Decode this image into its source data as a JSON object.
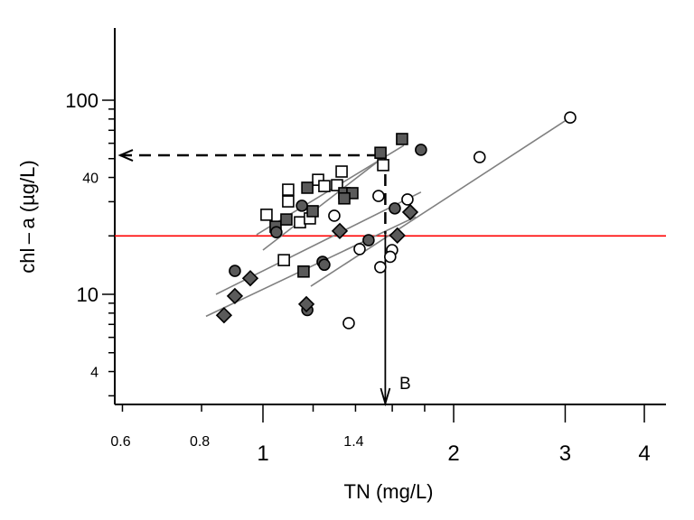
{
  "chart_data": {
    "type": "scatter",
    "title": "",
    "xlabel": "TN (mg/L)",
    "ylabel": "chl – a (µg/L)",
    "xscale": "log",
    "yscale": "log",
    "xlim": [
      0.58,
      4.3
    ],
    "ylim": [
      2.7,
      235
    ],
    "x_ticks_major": [
      {
        "value": 1,
        "label": "1"
      },
      {
        "value": 2,
        "label": "2"
      },
      {
        "value": 3,
        "label": "3"
      },
      {
        "value": 4,
        "label": "4"
      }
    ],
    "x_ticks_minor": [
      {
        "value": 0.6,
        "label": "0.6"
      },
      {
        "value": 0.8,
        "label": "0.8"
      },
      {
        "value": 1.2,
        "label": ""
      },
      {
        "value": 1.4,
        "label": "1.4"
      },
      {
        "value": 1.6,
        "label": ""
      },
      {
        "value": 1.8,
        "label": ""
      }
    ],
    "y_ticks_major": [
      {
        "value": 10,
        "label": "10"
      },
      {
        "value": 100,
        "label": "100"
      }
    ],
    "y_ticks_minor": [
      {
        "value": 3,
        "label": ""
      },
      {
        "value": 4,
        "label": "4"
      },
      {
        "value": 5,
        "label": ""
      },
      {
        "value": 6,
        "label": ""
      },
      {
        "value": 7,
        "label": ""
      },
      {
        "value": 8,
        "label": ""
      },
      {
        "value": 9,
        "label": ""
      },
      {
        "value": 20,
        "label": ""
      },
      {
        "value": 30,
        "label": ""
      },
      {
        "value": 40,
        "label": "40"
      },
      {
        "value": 50,
        "label": ""
      },
      {
        "value": 60,
        "label": ""
      },
      {
        "value": 70,
        "label": ""
      },
      {
        "value": 80,
        "label": ""
      },
      {
        "value": 90,
        "label": ""
      }
    ],
    "grid": false,
    "legend": "none",
    "series": [
      {
        "name": "open-square",
        "marker": "square",
        "fill": "#ffffff",
        "stroke": "#000000",
        "points": [
          [
            1.013,
            25.7
          ],
          [
            1.096,
            30.1
          ],
          [
            1.096,
            34.6
          ],
          [
            1.222,
            38.9
          ],
          [
            1.25,
            36.1
          ],
          [
            1.309,
            36.5
          ],
          [
            1.331,
            42.9
          ],
          [
            1.144,
            23.5
          ],
          [
            1.186,
            24.6
          ],
          [
            1.079,
            15.0
          ],
          [
            1.548,
            46.3
          ]
        ]
      },
      {
        "name": "filled-square",
        "marker": "square",
        "fill": "#5a5a5a",
        "stroke": "#000000",
        "points": [
          [
            1.047,
            22.3
          ],
          [
            1.089,
            24.3
          ],
          [
            1.175,
            35.4
          ],
          [
            1.198,
            26.8
          ],
          [
            1.344,
            33.2
          ],
          [
            1.384,
            33.2
          ],
          [
            1.344,
            31.2
          ],
          [
            1.533,
            53.6
          ],
          [
            1.658,
            63.1
          ],
          [
            1.159,
            13.1
          ]
        ]
      },
      {
        "name": "filled-circle",
        "marker": "circle",
        "fill": "#5a5a5a",
        "stroke": "#000000",
        "points": [
          [
            1.05,
            20.9
          ],
          [
            1.152,
            28.6
          ],
          [
            0.903,
            13.2
          ],
          [
            1.242,
            14.7
          ],
          [
            1.25,
            14.2
          ],
          [
            1.468,
            19.0
          ],
          [
            1.615,
            27.7
          ],
          [
            1.776,
            55.5
          ],
          [
            1.175,
            8.3
          ]
        ]
      },
      {
        "name": "filled-diamond",
        "marker": "diamond",
        "fill": "#5a5a5a",
        "stroke": "#000000",
        "points": [
          [
            0.955,
            12.1
          ],
          [
            0.903,
            9.8
          ],
          [
            0.868,
            7.8
          ],
          [
            1.171,
            8.9
          ],
          [
            1.322,
            21.2
          ],
          [
            1.63,
            20.1
          ],
          [
            1.708,
            26.5
          ]
        ]
      },
      {
        "name": "open-circle",
        "marker": "circle",
        "fill": "#ffffff",
        "stroke": "#000000",
        "points": [
          [
            1.296,
            25.4
          ],
          [
            1.522,
            32.1
          ],
          [
            1.691,
            30.8
          ],
          [
            1.421,
            17.1
          ],
          [
            1.599,
            16.9
          ],
          [
            1.588,
            15.6
          ],
          [
            1.532,
            13.8
          ],
          [
            1.366,
            7.1
          ],
          [
            2.198,
            50.9
          ],
          [
            3.055,
            81.4
          ]
        ]
      }
    ],
    "fit_lines": [
      {
        "name": "fit-line-1",
        "from": [
          0.977,
          20.3
        ],
        "to": [
          1.669,
          58.5
        ],
        "color": "#808080"
      },
      {
        "name": "fit-line-2",
        "from": [
          1.0,
          16.9
        ],
        "to": [
          1.563,
          52.0
        ],
        "color": "#808080"
      },
      {
        "name": "fit-line-3",
        "from": [
          0.843,
          10.0
        ],
        "to": [
          1.776,
          33.6
        ],
        "color": "#808080"
      },
      {
        "name": "fit-line-4",
        "from": [
          0.813,
          7.7
        ],
        "to": [
          1.743,
          25.1
        ],
        "color": "#808080"
      },
      {
        "name": "fit-line-5",
        "from": [
          1.19,
          11.0
        ],
        "to": [
          3.055,
          81.4
        ],
        "color": "#808080"
      }
    ],
    "reference_line": {
      "y": 20,
      "color": "#ff0000"
    },
    "annotations": {
      "target_chla": 52,
      "threshold_tn": 1.56,
      "arrow_label": "B"
    }
  }
}
